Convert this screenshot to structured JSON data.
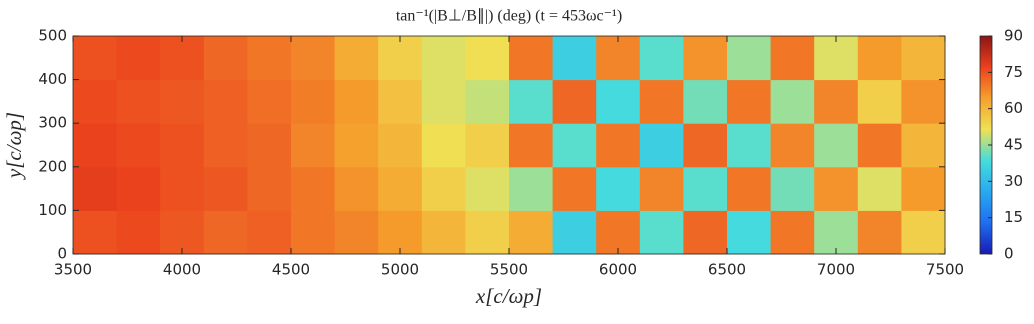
{
  "chart_data": {
    "type": "heatmap",
    "title": "tan⁻¹(|B⊥/B∥|) (deg) (t = 453ωc⁻¹)",
    "xlabel": "x[c/ωp]",
    "ylabel": "y[c/ωp]",
    "xbins": [
      3500,
      3700,
      3900,
      4100,
      4300,
      4500,
      4700,
      4900,
      5100,
      5300,
      5500,
      5700,
      5900,
      6100,
      6300,
      6500,
      6700,
      6900,
      7100,
      7300,
      7500
    ],
    "ybins": [
      0,
      100,
      200,
      300,
      400,
      500
    ],
    "values": [
      [
        75,
        76,
        74,
        72,
        73,
        70,
        68,
        65,
        60,
        55,
        62,
        35,
        70,
        40,
        72,
        38,
        70,
        45,
        68,
        55
      ],
      [
        78,
        77,
        75,
        74,
        72,
        70,
        66,
        62,
        55,
        50,
        45,
        70,
        38,
        68,
        40,
        70,
        42,
        66,
        50,
        65
      ],
      [
        77,
        76,
        75,
        73,
        72,
        68,
        64,
        60,
        52,
        55,
        70,
        40,
        70,
        35,
        72,
        40,
        68,
        45,
        70,
        60
      ],
      [
        76,
        75,
        74,
        73,
        71,
        69,
        65,
        58,
        50,
        48,
        40,
        72,
        38,
        70,
        42,
        70,
        45,
        68,
        55,
        66
      ],
      [
        75,
        76,
        75,
        72,
        70,
        68,
        62,
        55,
        50,
        52,
        70,
        35,
        68,
        40,
        66,
        45,
        70,
        50,
        65,
        60
      ]
    ],
    "xlim": [
      3500,
      7500
    ],
    "xticks": [
      3500,
      4000,
      4500,
      5000,
      5500,
      6000,
      6500,
      7000,
      7500
    ],
    "ylim": [
      0,
      500
    ],
    "yticks": [
      0,
      100,
      200,
      300,
      400,
      500
    ],
    "clim": [
      0,
      90
    ],
    "cticks": [
      0,
      15,
      30,
      45,
      60,
      75,
      90
    ],
    "colormap": [
      "#1a1ab4",
      "#1e6ef0",
      "#28aaf0",
      "#46dcdc",
      "#f0e155",
      "#f5a02d",
      "#eb411e",
      "#8c1414"
    ]
  }
}
